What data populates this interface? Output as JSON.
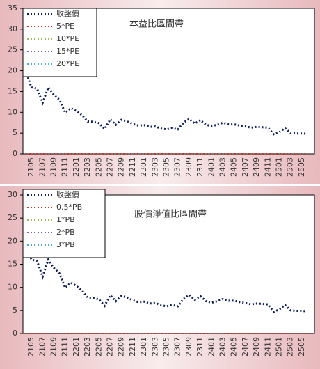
{
  "chart_data": [
    {
      "type": "line",
      "title": "本益比區間帶",
      "categories": [
        null,
        "2105",
        null,
        "2107",
        null,
        "2109",
        null,
        "2111",
        null,
        "2201",
        null,
        "2203",
        null,
        "2205",
        null,
        "2207",
        null,
        "2209",
        null,
        "2211",
        null,
        "2301",
        null,
        "2303",
        null,
        "2305",
        null,
        "2307",
        null,
        "2309",
        null,
        "2311",
        null,
        "2401",
        null,
        "2403",
        null,
        "2405",
        null,
        "2407",
        null,
        "2409",
        null,
        "2411",
        null,
        "2501",
        null,
        "2503",
        null,
        "2505",
        null
      ],
      "series": [
        {
          "name": "收盤價",
          "color": "#0d1f5e",
          "values": [
            20,
            16,
            15.7,
            12.3,
            16,
            14.2,
            13,
            9.9,
            11,
            10.3,
            9.3,
            7.8,
            7.7,
            7.4,
            6,
            8.3,
            7,
            8.2,
            7.8,
            7.2,
            6.8,
            6.9,
            6.5,
            6.6,
            6.1,
            5.9,
            6.2,
            5.9,
            7.5,
            8.4,
            7.3,
            8.1,
            7,
            6.7,
            7,
            7.5,
            7.1,
            7.1,
            6.8,
            6.6,
            6.3,
            6.5,
            6.4,
            6.3,
            4.7,
            5.2,
            6.2,
            5,
            4.9,
            4.9,
            4.8
          ]
        },
        {
          "name": "5*PE",
          "color": "#c0392b",
          "values": [
            0,
            0,
            0,
            0,
            0,
            0,
            0,
            0,
            0,
            0,
            0,
            0,
            0,
            0,
            0,
            0,
            0,
            0,
            0,
            0,
            0,
            0,
            0,
            0,
            0,
            0,
            0,
            0,
            0,
            0,
            0,
            0,
            0,
            0,
            0,
            0,
            0,
            0,
            0,
            0,
            0,
            0,
            0,
            0,
            0,
            0,
            0,
            0,
            0,
            0,
            0
          ]
        },
        {
          "name": "10*PE",
          "color": "#9bbb59",
          "values": [
            0,
            0,
            0,
            0,
            0,
            0,
            0,
            0,
            0,
            0,
            0,
            0,
            0,
            0,
            0,
            0,
            0,
            0,
            0,
            0,
            0,
            0,
            0,
            0,
            0,
            0,
            0,
            0,
            0,
            0,
            0,
            0,
            0,
            0,
            0,
            0,
            0,
            0,
            0,
            0,
            0,
            0,
            0,
            0,
            0,
            0,
            0,
            0,
            0,
            0,
            0
          ]
        },
        {
          "name": "15*PE",
          "color": "#7f5fa8",
          "values": [
            0,
            0,
            0,
            0,
            0,
            0,
            0,
            0,
            0,
            0,
            0,
            0,
            0,
            0,
            0,
            0,
            0,
            0,
            0,
            0,
            0,
            0,
            0,
            0,
            0,
            0,
            0,
            0,
            0,
            0,
            0,
            0,
            0,
            0,
            0,
            0,
            0,
            0,
            0,
            0,
            0,
            0,
            0,
            0,
            0,
            0,
            0,
            0,
            0,
            0,
            0
          ]
        },
        {
          "name": "20*PE",
          "color": "#4bacc6",
          "values": [
            0,
            0,
            0,
            0,
            0,
            0,
            0,
            0,
            0,
            0,
            0,
            0,
            0,
            0,
            0,
            0,
            0,
            0,
            0,
            0,
            0,
            0,
            0,
            0,
            0,
            0,
            0,
            0,
            0,
            0,
            0,
            0,
            0,
            0,
            0,
            0,
            0,
            0,
            0,
            0,
            0,
            0,
            0,
            0,
            0,
            0,
            0,
            0,
            0,
            0,
            0
          ]
        }
      ],
      "ylim": [
        0,
        35
      ],
      "yticks": [
        0,
        5,
        10,
        15,
        20,
        25,
        30,
        35
      ],
      "legend": "upper left"
    },
    {
      "type": "line",
      "title": "股價淨值比區間帶",
      "categories": [
        null,
        "2105",
        null,
        "2107",
        null,
        "2109",
        null,
        "2111",
        null,
        "2201",
        null,
        "2203",
        null,
        "2205",
        null,
        "2207",
        null,
        "2209",
        null,
        "2211",
        null,
        "2301",
        null,
        "2303",
        null,
        "2305",
        null,
        "2307",
        null,
        "2309",
        null,
        "2311",
        null,
        "2401",
        null,
        "2403",
        null,
        "2405",
        null,
        "2407",
        null,
        "2409",
        null,
        "2411",
        null,
        "2501",
        null,
        "2503",
        null,
        "2505",
        null
      ],
      "series": [
        {
          "name": "收盤價",
          "color": "#0d1f5e",
          "values": [
            20,
            16,
            15.7,
            12.3,
            16,
            14.2,
            13,
            9.9,
            11,
            10.3,
            9.3,
            7.8,
            7.7,
            7.4,
            6,
            8.3,
            7,
            8.2,
            7.8,
            7.2,
            6.8,
            6.9,
            6.5,
            6.6,
            6.1,
            5.9,
            6.2,
            5.9,
            7.5,
            8.4,
            7.3,
            8.1,
            7,
            6.7,
            7,
            7.5,
            7.1,
            7.1,
            6.8,
            6.6,
            6.3,
            6.5,
            6.4,
            6.3,
            4.7,
            5.2,
            6.2,
            5,
            4.9,
            4.9,
            4.8
          ]
        },
        {
          "name": "0.5*PB",
          "color": "#c0392b",
          "values": [
            0,
            0,
            0,
            0,
            0,
            0,
            0,
            0,
            0,
            0,
            0,
            0,
            0,
            0,
            0,
            0,
            0,
            0,
            0,
            0,
            0,
            0,
            0,
            0,
            0,
            0,
            0,
            0,
            0,
            0,
            0,
            0,
            0,
            0,
            0,
            0,
            0,
            0,
            0,
            0,
            0,
            0,
            0,
            0,
            0,
            0,
            0,
            0,
            0,
            0,
            0
          ]
        },
        {
          "name": "1*PB",
          "color": "#9bbb59",
          "values": [
            0,
            0,
            0,
            0,
            0,
            0,
            0,
            0,
            0,
            0,
            0,
            0,
            0,
            0,
            0,
            0,
            0,
            0,
            0,
            0,
            0,
            0,
            0,
            0,
            0,
            0,
            0,
            0,
            0,
            0,
            0,
            0,
            0,
            0,
            0,
            0,
            0,
            0,
            0,
            0,
            0,
            0,
            0,
            0,
            0,
            0,
            0,
            0,
            0,
            0,
            0
          ]
        },
        {
          "name": "2*PB",
          "color": "#7f5fa8",
          "values": [
            0,
            0,
            0,
            0,
            0,
            0,
            0,
            0,
            0,
            0,
            0,
            0,
            0,
            0,
            0,
            0,
            0,
            0,
            0,
            0,
            0,
            0,
            0,
            0,
            0,
            0,
            0,
            0,
            0,
            0,
            0,
            0,
            0,
            0,
            0,
            0,
            0,
            0,
            0,
            0,
            0,
            0,
            0,
            0,
            0,
            0,
            0,
            0,
            0,
            0,
            0
          ]
        },
        {
          "name": "3*PB",
          "color": "#4bacc6",
          "values": [
            0,
            0,
            0,
            0,
            0,
            0,
            0,
            0,
            0,
            0,
            0,
            0,
            0,
            0,
            0,
            0,
            0,
            0,
            0,
            0,
            0,
            0,
            0,
            0,
            0,
            0,
            0,
            0,
            0,
            0,
            0,
            0,
            0,
            0,
            0,
            0,
            0,
            0,
            0,
            0,
            0,
            0,
            0,
            0,
            0,
            0,
            0,
            0,
            0,
            0,
            0
          ]
        }
      ],
      "ylim": [
        0,
        30
      ],
      "yticks": [
        0,
        5,
        10,
        15,
        20,
        25,
        30
      ],
      "legend": "upper left"
    }
  ]
}
